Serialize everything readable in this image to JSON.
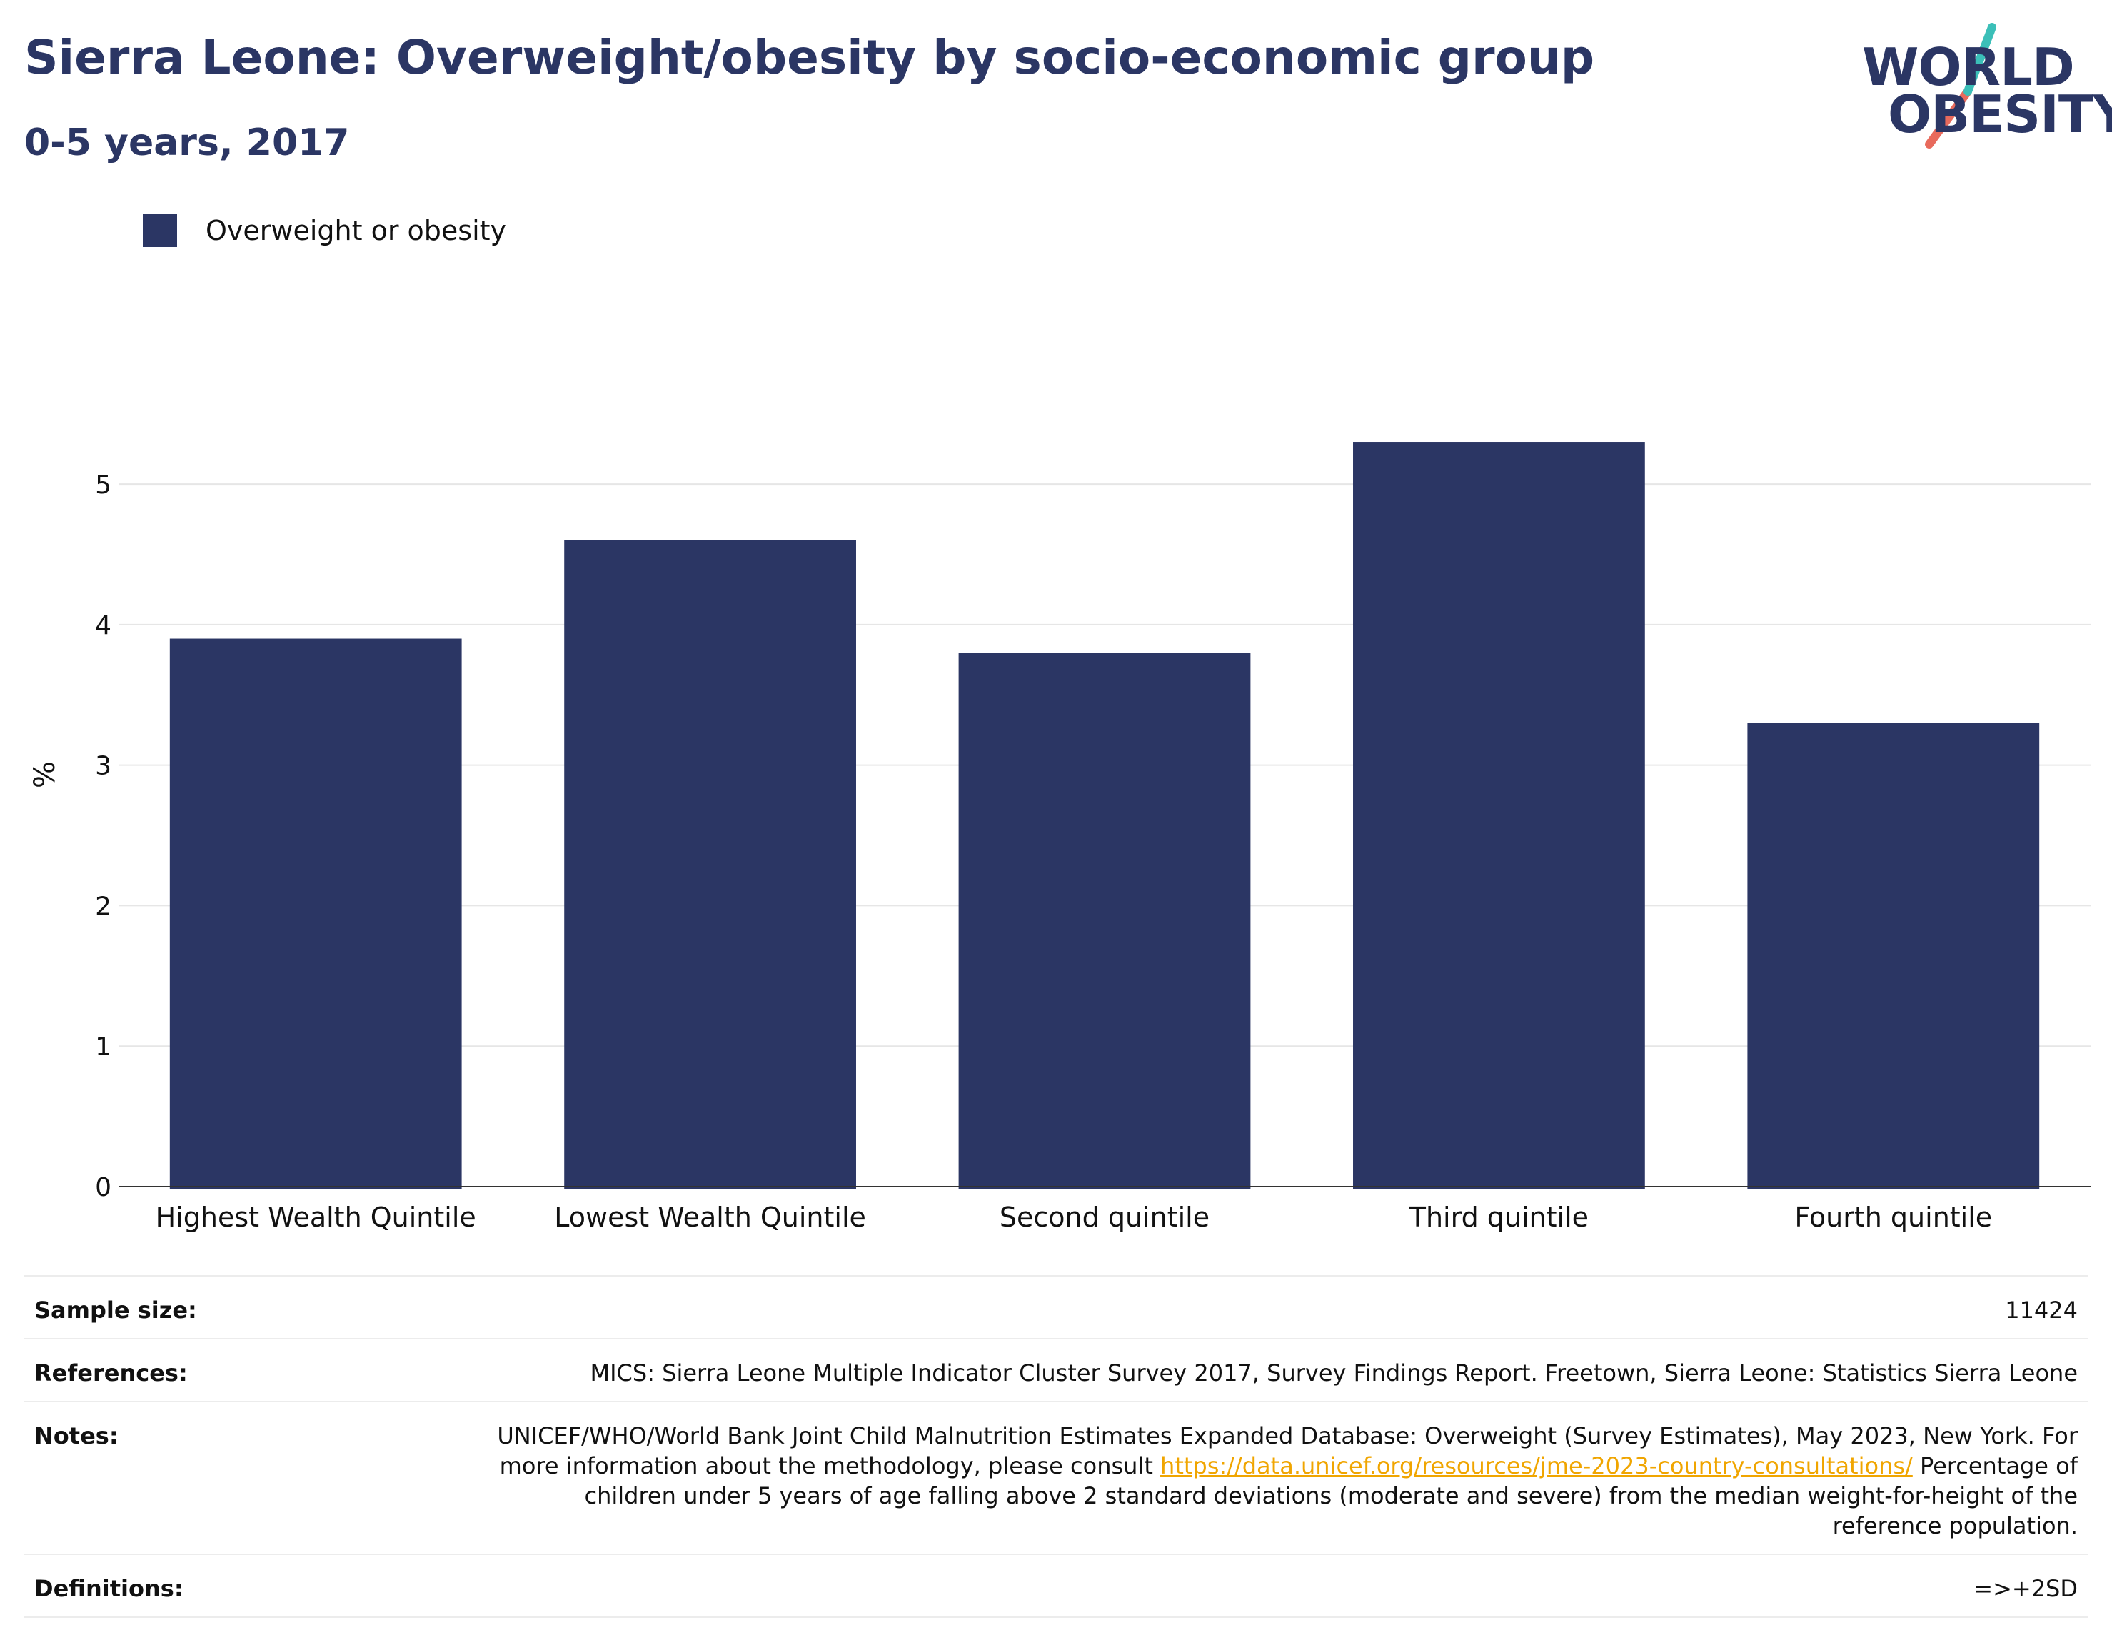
{
  "header": {
    "title": "Sierra Leone: Overweight/obesity by socio-economic group",
    "subtitle": "0-5 years, 2017"
  },
  "logo": {
    "line1": "WORLD",
    "line2": "OBESITY"
  },
  "colors": {
    "bar": "#2b3664",
    "title": "#2b3664",
    "grid": "#e6e6e6",
    "link": "#f0a500",
    "logo_teal": "#3bbfb8",
    "logo_coral": "#e86a5c"
  },
  "chart_data": {
    "type": "bar",
    "title": "Sierra Leone: Overweight/obesity by socio-economic group",
    "subtitle": "0-5 years, 2017",
    "xlabel": "",
    "ylabel": "%",
    "ylim": [
      0,
      5.6
    ],
    "yticks": [
      0,
      1,
      2,
      3,
      4,
      5
    ],
    "grid": true,
    "legend_placement": "top-left",
    "categories": [
      "Highest Wealth Quintile",
      "Lowest Wealth Quintile",
      "Second quintile",
      "Third quintile",
      "Fourth quintile"
    ],
    "series": [
      {
        "name": "Overweight or obesity",
        "values": [
          3.9,
          4.6,
          3.8,
          5.3,
          3.3
        ]
      }
    ]
  },
  "footer": {
    "rows": [
      {
        "label": "Sample size:",
        "value": "11424"
      },
      {
        "label": "References:",
        "value": "MICS: Sierra Leone Multiple Indicator Cluster Survey 2017, Survey Findings Report. Freetown, Sierra Leone: Statistics Sierra Leone"
      },
      {
        "label": "Notes:",
        "value_before": "UNICEF/WHO/World Bank Joint Child Malnutrition Estimates Expanded Database: Overweight (Survey Estimates), May 2023, New York. For more information about the methodology, please consult ",
        "link": "https://data.unicef.org/resources/jme-2023-country-consultations/",
        "value_after": " Percentage of children under 5 years of age falling above 2 standard deviations (moderate and severe) from the median weight-for-height of the reference population."
      },
      {
        "label": "Definitions:",
        "value": "=>+2SD"
      }
    ]
  }
}
